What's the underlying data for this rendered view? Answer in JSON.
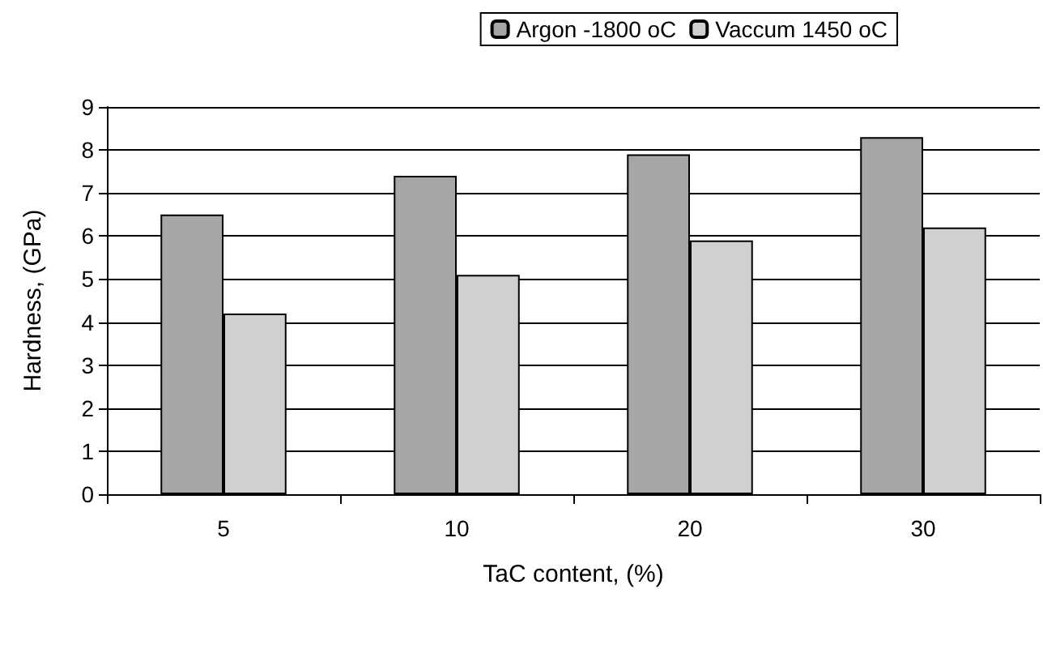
{
  "chart_data": {
    "type": "bar",
    "xlabel": "TaC content, (%)",
    "ylabel": "Hardness, (GPa)",
    "categories": [
      "5",
      "10",
      "20",
      "30"
    ],
    "series": [
      {
        "name": "Argon -1800 oC",
        "color": "#a6a6a6",
        "values": [
          6.5,
          7.4,
          7.9,
          8.3
        ]
      },
      {
        "name": "Vaccum 1450 oC",
        "color": "#d0d0d0",
        "values": [
          4.2,
          5.1,
          5.9,
          6.2
        ]
      }
    ],
    "ylim": [
      0,
      9
    ],
    "yticks": [
      0,
      1,
      2,
      3,
      4,
      5,
      6,
      7,
      8,
      9
    ],
    "grid": "y",
    "legend": "top right"
  }
}
